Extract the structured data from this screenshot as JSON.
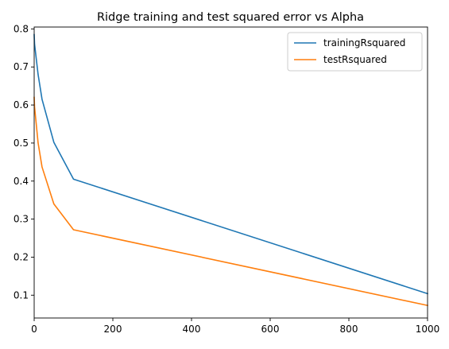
{
  "chart_data": {
    "type": "line",
    "title": "Ridge training and test squared error vs Alpha",
    "xlabel": "",
    "ylabel": "",
    "xlim": [
      0,
      1000
    ],
    "ylim": [
      0.04,
      0.805
    ],
    "xticks": [
      0,
      200,
      400,
      600,
      800,
      1000
    ],
    "yticks": [
      0.1,
      0.2,
      0.3,
      0.4,
      0.5,
      0.6,
      0.7,
      0.8
    ],
    "grid": false,
    "legend_position": "top-right",
    "x": [
      0,
      1,
      10,
      20,
      50,
      100,
      1000
    ],
    "series": [
      {
        "name": "trainingRsquared",
        "color": "#1f77b4",
        "values": [
          0.785,
          0.76,
          0.68,
          0.615,
          0.502,
          0.405,
          0.104
        ]
      },
      {
        "name": "testRsquared",
        "color": "#ff7f0e",
        "values": [
          0.62,
          0.595,
          0.5,
          0.437,
          0.34,
          0.272,
          0.073
        ]
      }
    ]
  }
}
